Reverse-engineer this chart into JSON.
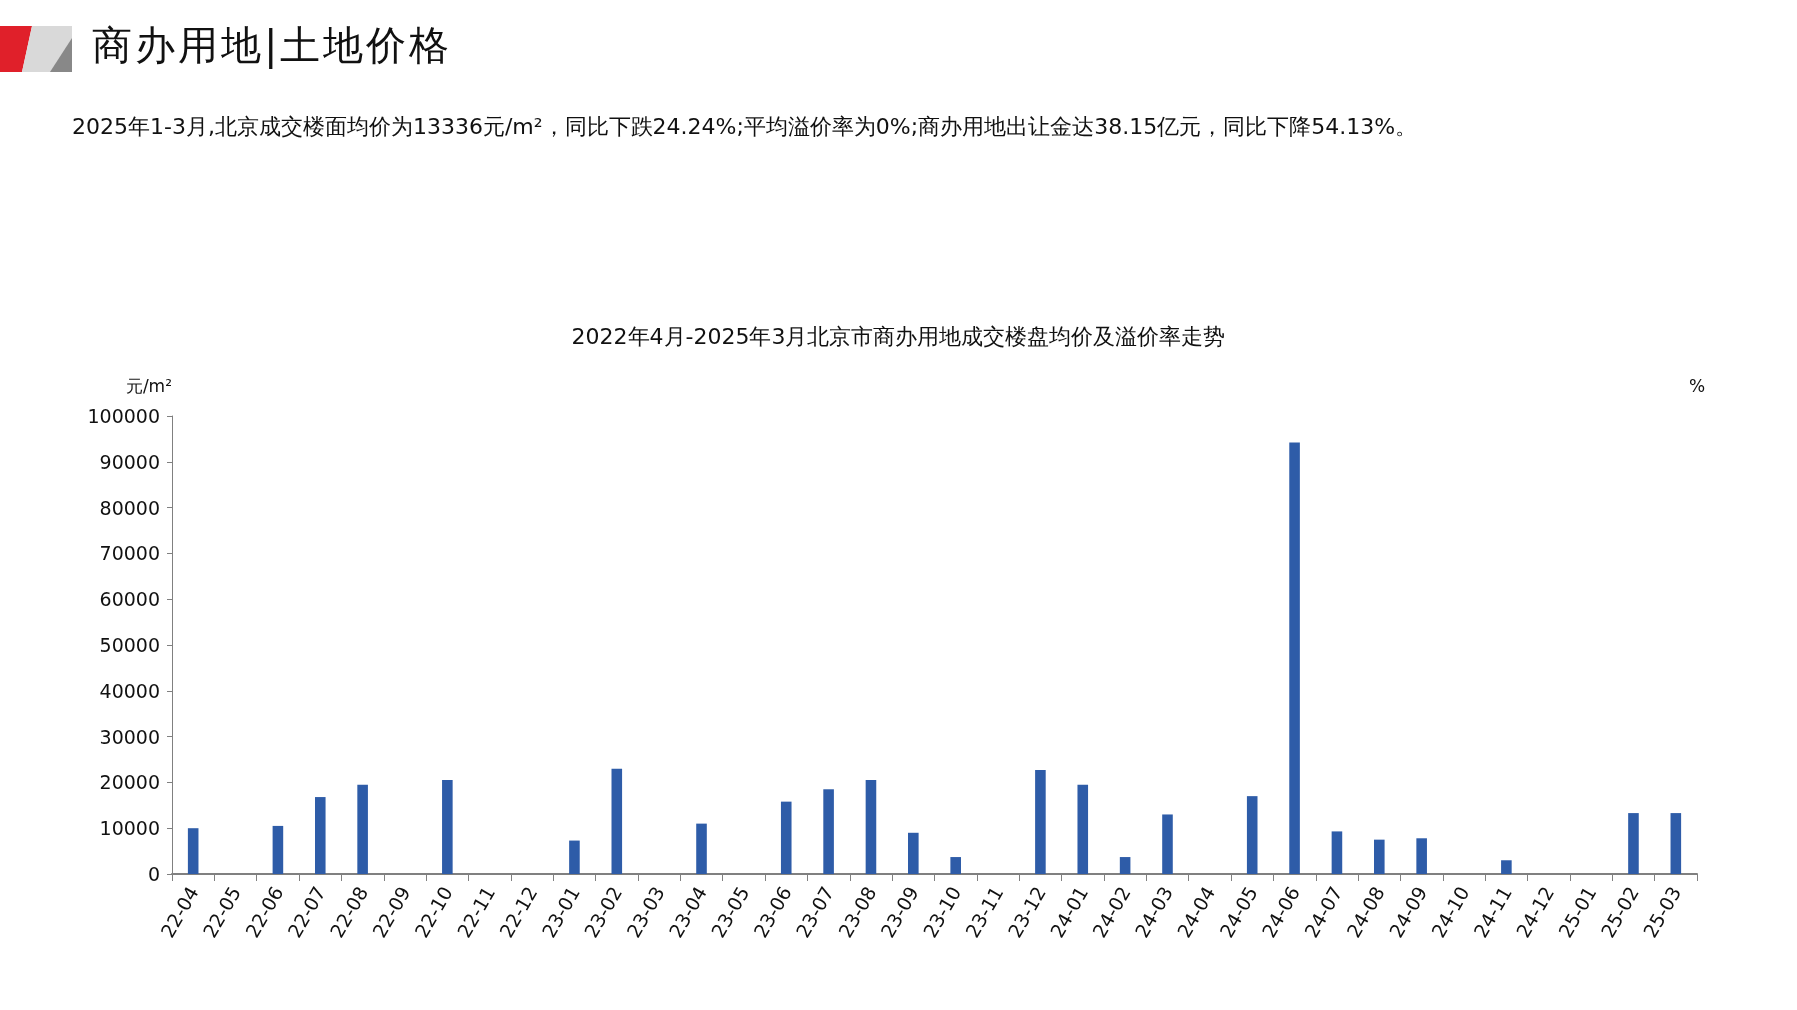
{
  "chart_data": {
    "type": "bar",
    "title": "2022年4月-2025年3月北京市商办用地成交楼盘均价及溢价率走势",
    "annotations": [
      "商办用地|土地价格",
      "2025年1-3月,北京成交楼面均价为13336元/m²，同比下跌24.24%;平均溢价率为0%;商办用地出让金达38.15亿元，同比下降54.13%。"
    ],
    "ylabel": "元/m²",
    "y2label": "%",
    "categories": [
      "22-04",
      "22-05",
      "22-06",
      "22-07",
      "22-08",
      "22-09",
      "22-10",
      "22-11",
      "22-12",
      "23-01",
      "23-02",
      "23-03",
      "23-04",
      "23-05",
      "23-06",
      "23-07",
      "23-08",
      "23-09",
      "23-10",
      "23-11",
      "23-12",
      "24-01",
      "24-02",
      "24-03",
      "24-04",
      "24-05",
      "24-06",
      "24-07",
      "24-08",
      "24-09",
      "24-10",
      "24-11",
      "24-12",
      "25-01",
      "25-02",
      "25-03"
    ],
    "values": [
      10000,
      null,
      10500,
      16800,
      19500,
      null,
      20500,
      null,
      null,
      7300,
      23000,
      null,
      11000,
      null,
      15800,
      18500,
      20500,
      9000,
      3700,
      null,
      22700,
      19500,
      3700,
      13000,
      null,
      17000,
      94200,
      9300,
      7500,
      7800,
      null,
      3000,
      null,
      null,
      13300,
      13300
    ],
    "color": "#2e5ca8",
    "ylim": [
      0,
      100000
    ],
    "yticks": [
      0,
      10000,
      20000,
      30000,
      40000,
      50000,
      60000,
      70000,
      80000,
      90000,
      100000
    ],
    "grid": false
  }
}
